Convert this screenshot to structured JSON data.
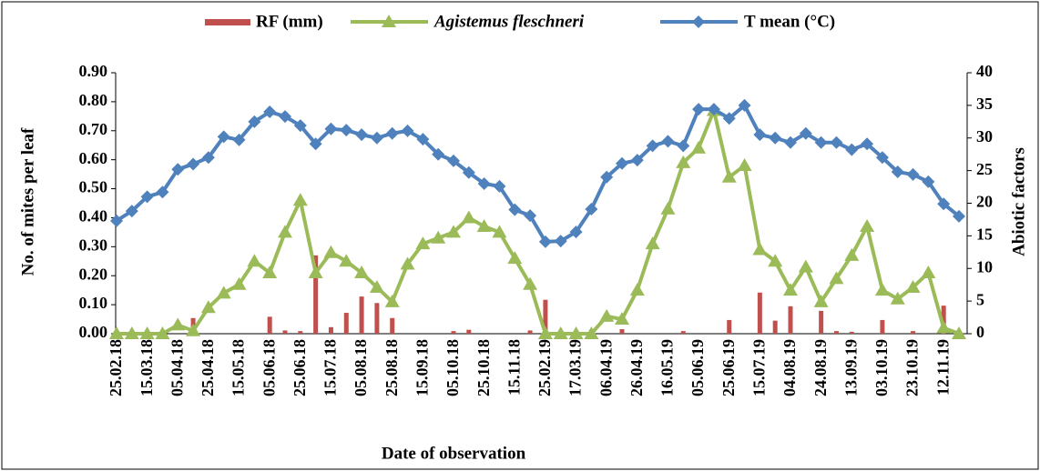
{
  "chart_data": {
    "type": "combo",
    "x_label": "Date of observation",
    "y_label": "No. of mites per leaf",
    "y2_label": "Abiotic factors",
    "categories": [
      "25.02.18",
      null,
      "15.03.18",
      null,
      "05.04.18",
      null,
      "25.04.18",
      null,
      "15.05.18",
      null,
      "05.06.18",
      null,
      "25.06.18",
      null,
      "15.07.18",
      null,
      "05.08.18",
      null,
      "25.08.18",
      null,
      "15.09.18",
      null,
      "05.10.18",
      null,
      "25.10.18",
      null,
      "15.11.18",
      null,
      "25.02.19",
      null,
      "17.03.19",
      null,
      "06.04.19",
      null,
      "26.04.19",
      null,
      "16.05.19",
      null,
      "05.06.19",
      null,
      "25.06.19",
      null,
      "15.07.19",
      null,
      "04.08.19",
      null,
      "24.08.19",
      null,
      "13.09.19",
      null,
      "03.10.19",
      null,
      "23.10.19",
      null,
      "12.11.19",
      null
    ],
    "ylim": [
      0,
      0.9
    ],
    "yticks": [
      {
        "value": 0,
        "label": "0.00"
      },
      {
        "value": 0.1,
        "label": "0.10"
      },
      {
        "value": 0.2,
        "label": "0.20"
      },
      {
        "value": 0.3,
        "label": "0.30"
      },
      {
        "value": 0.4,
        "label": "0.40"
      },
      {
        "value": 0.5,
        "label": "0.50"
      },
      {
        "value": 0.6,
        "label": "0.60"
      },
      {
        "value": 0.7,
        "label": "0.70"
      },
      {
        "value": 0.8,
        "label": "0.80"
      },
      {
        "value": 0.9,
        "label": "0.90"
      }
    ],
    "y2lim": [
      0,
      40
    ],
    "y2ticks": [
      0,
      5,
      10,
      15,
      20,
      25,
      30,
      35,
      40
    ],
    "legend": "top",
    "series": [
      {
        "name": "RF (mm)",
        "type": "bar",
        "axis": "y2",
        "color": "#c0504d",
        "values": [
          0,
          0,
          0,
          0,
          0,
          2.4,
          0,
          0,
          0,
          0,
          2.6,
          0.5,
          0.4,
          12,
          1,
          3.2,
          5.7,
          4.7,
          2.4,
          0,
          0,
          0,
          0.4,
          0.6,
          0,
          0,
          0,
          0.5,
          5.2,
          0,
          0,
          0,
          0,
          0.7,
          0,
          0,
          0,
          0.4,
          0,
          0,
          2.1,
          0,
          6.3,
          2,
          4.2,
          0,
          3.5,
          0.4,
          0.3,
          0,
          2.1,
          0,
          0.4,
          0,
          4.3,
          0
        ]
      },
      {
        "name": "Agistemus fleschneri",
        "type": "line",
        "marker": "triangle",
        "axis": "y",
        "color": "#9bbb59",
        "values": [
          0,
          0,
          0,
          0,
          0.03,
          0.01,
          0.09,
          0.14,
          0.17,
          0.25,
          0.21,
          0.35,
          0.46,
          0.21,
          0.28,
          0.25,
          0.21,
          0.16,
          0.11,
          0.24,
          0.31,
          0.33,
          0.35,
          0.4,
          0.37,
          0.35,
          0.26,
          0.17,
          0,
          0,
          0,
          0,
          0.06,
          0.05,
          0.15,
          0.31,
          0.43,
          0.59,
          0.64,
          0.77,
          0.54,
          0.58,
          0.29,
          0.25,
          0.15,
          0.23,
          0.11,
          0.19,
          0.27,
          0.37,
          0.15,
          0.12,
          0.16,
          0.21,
          0.02,
          0
        ]
      },
      {
        "name": "T mean (°C)",
        "type": "line",
        "marker": "diamond",
        "axis": "y2",
        "color": "#4f81bd",
        "values": [
          17.3,
          18.8,
          21,
          21.7,
          25.2,
          26,
          27,
          30.2,
          29.7,
          32.5,
          34,
          33.3,
          31.9,
          29.1,
          31.4,
          31.2,
          30.5,
          30,
          30.7,
          31.1,
          29.8,
          27.5,
          26.5,
          24.7,
          23,
          22.6,
          19,
          18.1,
          14.1,
          14.2,
          15.6,
          19.1,
          24,
          26.1,
          26.6,
          28.8,
          29.5,
          28.8,
          34.4,
          34.4,
          33,
          35,
          30.5,
          30,
          29.3,
          30.7,
          29.3,
          29.3,
          28.2,
          29.1,
          27,
          24.8,
          24.4,
          23.3,
          19.9,
          18
        ]
      }
    ]
  }
}
